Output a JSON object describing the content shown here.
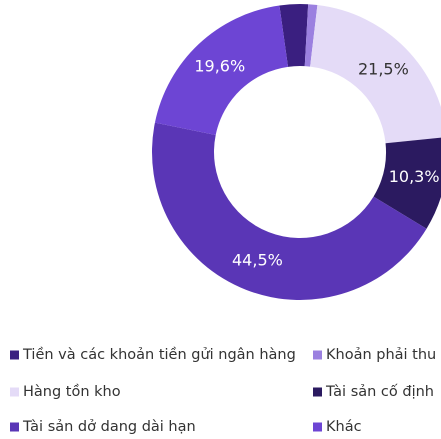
{
  "chart_data": {
    "type": "donut",
    "categories": [
      "Tiền và các khoản tiền gửi ngân hàng",
      "Khoản phải thu",
      "Hàng tồn kho",
      "Tài sản cố định",
      "Tài sản dở dang dài hạn",
      "Khác"
    ],
    "values": [
      3.1,
      1.0,
      21.5,
      10.3,
      44.5,
      19.6
    ],
    "value_labels": [
      null,
      null,
      "21,5%",
      "10,3%",
      "44,5%",
      "19,6%"
    ],
    "colors": [
      "#3a1f80",
      "#9b80e0",
      "#e4dbf7",
      "#2b1a60",
      "#5a36b6",
      "#6d45d4"
    ],
    "legend": "bottom"
  }
}
